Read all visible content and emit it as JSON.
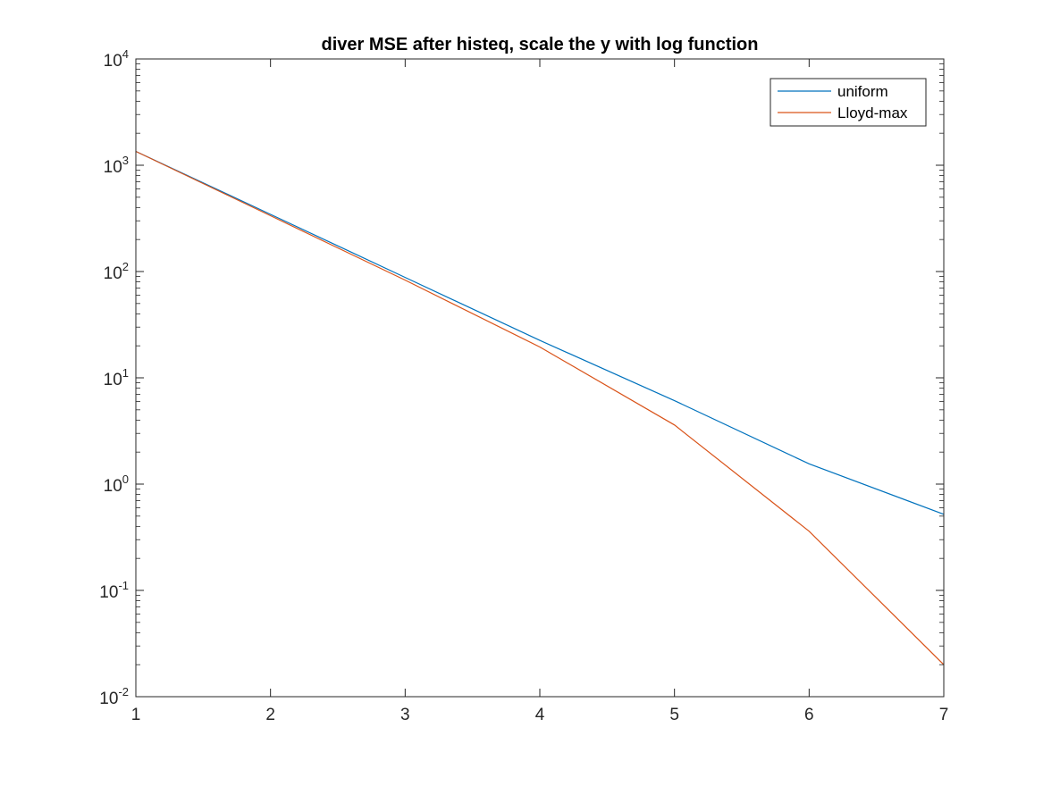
{
  "chart_data": {
    "type": "line",
    "title": "diver MSE after histeq, scale the y with log function",
    "xlabel": "",
    "ylabel": "",
    "x": [
      1,
      2,
      3,
      4,
      5,
      6,
      7
    ],
    "xlim": [
      1,
      7
    ],
    "ylim": [
      0.01,
      10000
    ],
    "yscale": "log",
    "x_ticks": [
      1,
      2,
      3,
      4,
      5,
      6,
      7
    ],
    "y_ticks": [
      {
        "base": "10",
        "exp": "-2",
        "value": 0.01
      },
      {
        "base": "10",
        "exp": "-1",
        "value": 0.1
      },
      {
        "base": "10",
        "exp": "0",
        "value": 1
      },
      {
        "base": "10",
        "exp": "1",
        "value": 10
      },
      {
        "base": "10",
        "exp": "2",
        "value": 100
      },
      {
        "base": "10",
        "exp": "3",
        "value": 1000
      },
      {
        "base": "10",
        "exp": "4",
        "value": 10000
      }
    ],
    "grid": false,
    "legend_position": "top-right",
    "series": [
      {
        "name": "uniform",
        "color": "#0072bd",
        "values": [
          1350,
          345,
          88,
          22.5,
          6.1,
          1.55,
          0.52
        ]
      },
      {
        "name": "Lloyd-max",
        "color": "#d95319",
        "values": [
          1350,
          335,
          83,
          19.5,
          3.6,
          0.36,
          0.02
        ]
      }
    ]
  }
}
